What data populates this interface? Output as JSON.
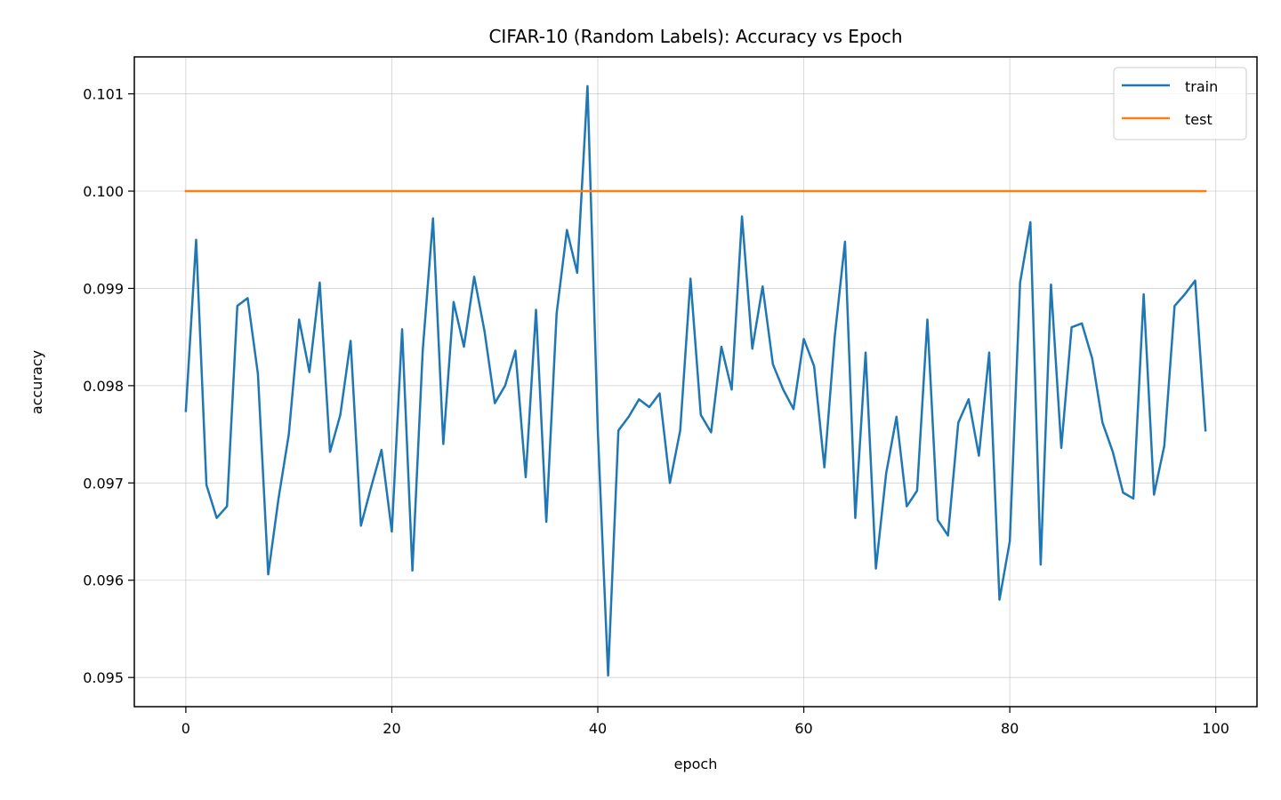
{
  "chart_data": {
    "type": "line",
    "title": "CIFAR-10 (Random Labels): Accuracy vs Epoch",
    "xlabel": "epoch",
    "ylabel": "accuracy",
    "xlim": [
      -5,
      104
    ],
    "ylim": [
      0.0947,
      0.10138
    ],
    "xticks": [
      0,
      20,
      40,
      60,
      80,
      100
    ],
    "xtick_labels": [
      "0",
      "20",
      "40",
      "60",
      "80",
      "100"
    ],
    "yticks": [
      0.095,
      0.096,
      0.097,
      0.098,
      0.099,
      0.1,
      0.101
    ],
    "ytick_labels": [
      "0.095",
      "0.096",
      "0.097",
      "0.098",
      "0.099",
      "0.100",
      "0.101"
    ],
    "grid": true,
    "legend_position": "top-right",
    "series": [
      {
        "name": "train",
        "color": "#1f77b4",
        "x": [
          0,
          1,
          2,
          3,
          4,
          5,
          6,
          7,
          8,
          9,
          10,
          11,
          12,
          13,
          14,
          15,
          16,
          17,
          18,
          19,
          20,
          21,
          22,
          23,
          24,
          25,
          26,
          27,
          28,
          29,
          30,
          31,
          32,
          33,
          34,
          35,
          36,
          37,
          38,
          39,
          40,
          41,
          42,
          43,
          44,
          45,
          46,
          47,
          48,
          49,
          50,
          51,
          52,
          53,
          54,
          55,
          56,
          57,
          58,
          59,
          60,
          61,
          62,
          63,
          64,
          65,
          66,
          67,
          68,
          69,
          70,
          71,
          72,
          73,
          74,
          75,
          76,
          77,
          78,
          79,
          80,
          81,
          82,
          83,
          84,
          85,
          86,
          87,
          88,
          89,
          90,
          91,
          92,
          93,
          94,
          95,
          96,
          97,
          98,
          99
        ],
        "values": [
          0.09774,
          0.0995,
          0.09698,
          0.09664,
          0.09676,
          0.09882,
          0.0989,
          0.09812,
          0.09606,
          0.09684,
          0.0975,
          0.09868,
          0.09814,
          0.09906,
          0.09732,
          0.0977,
          0.09846,
          0.09656,
          0.09696,
          0.09734,
          0.0965,
          0.09858,
          0.0961,
          0.09836,
          0.09972,
          0.0974,
          0.09886,
          0.0984,
          0.09912,
          0.09856,
          0.09782,
          0.098,
          0.09836,
          0.09706,
          0.09878,
          0.0966,
          0.09874,
          0.0996,
          0.09916,
          0.10108,
          0.09754,
          0.09502,
          0.09754,
          0.09768,
          0.09786,
          0.09778,
          0.09792,
          0.097,
          0.09754,
          0.0991,
          0.0977,
          0.09752,
          0.0984,
          0.09796,
          0.09974,
          0.09838,
          0.09902,
          0.09822,
          0.09796,
          0.09776,
          0.09848,
          0.0982,
          0.09716,
          0.0985,
          0.09948,
          0.09664,
          0.09834,
          0.09612,
          0.0971,
          0.09768,
          0.09676,
          0.09692,
          0.09868,
          0.09662,
          0.09646,
          0.09762,
          0.09786,
          0.09728,
          0.09834,
          0.0958,
          0.0964,
          0.09906,
          0.09968,
          0.09616,
          0.09904,
          0.09736,
          0.0986,
          0.09864,
          0.09828,
          0.09762,
          0.09732,
          0.0969,
          0.09684,
          0.09894,
          0.09688,
          0.09738,
          0.09882,
          0.09894,
          0.09908,
          0.09754
        ]
      },
      {
        "name": "test",
        "color": "#ff7f0e",
        "x": [
          0,
          99
        ],
        "values": [
          0.1,
          0.1
        ]
      }
    ]
  }
}
